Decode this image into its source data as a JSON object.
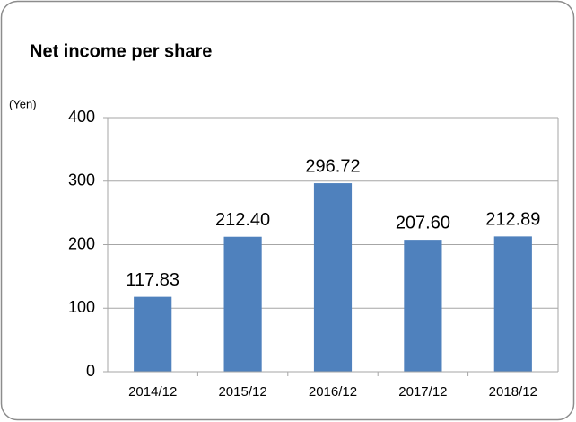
{
  "chart_data": {
    "type": "bar",
    "title": "Net income per share",
    "y_label": "(Yen)",
    "categories": [
      "2014/12",
      "2015/12",
      "2016/12",
      "2017/12",
      "2018/12"
    ],
    "values": [
      117.83,
      212.4,
      296.72,
      207.6,
      212.89
    ],
    "value_labels": [
      "117.83",
      "212.40",
      "296.72",
      "207.60",
      "212.89"
    ],
    "color": "#4f81bd",
    "ylim": [
      0,
      400
    ],
    "yticks": [
      0,
      100,
      200,
      300,
      400
    ],
    "grid": true
  }
}
